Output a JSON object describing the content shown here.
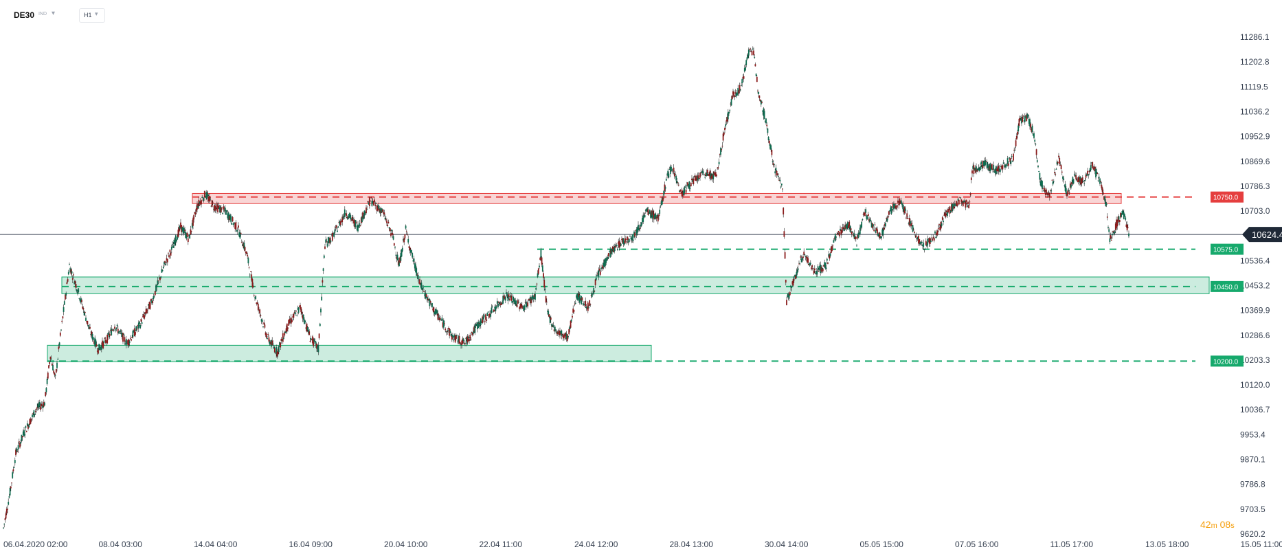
{
  "header": {
    "symbol": "DE30",
    "symbol_type": "IND",
    "timeframe": "H1"
  },
  "timer": {
    "minutes": "42",
    "m": "m",
    "seconds": "08",
    "s": "s"
  },
  "colors": {
    "bull": "#0f6b4f",
    "bear": "#8b1c1c",
    "resistance": "#e53e3e",
    "support": "#16a96c",
    "price_line": "#374151",
    "axis_text": "#374151"
  },
  "chart_data": {
    "type": "candlestick",
    "symbol": "DE30",
    "timeframe": "H1",
    "ylim": [
      9620.2,
      11340
    ],
    "y_ticks": [
      "11286.1",
      "11202.8",
      "11119.5",
      "11036.2",
      "10952.9",
      "10869.6",
      "10786.3",
      "10703.0",
      "10536.4",
      "10453.2",
      "10369.9",
      "10286.6",
      "10203.3",
      "10120.0",
      "10036.7",
      "9953.4",
      "9870.1",
      "9786.8",
      "9703.5",
      "9620.2"
    ],
    "x_ticks": [
      "06.04.2020  02:00",
      "08.04  03:00",
      "14.04  04:00",
      "16.04  09:00",
      "20.04  10:00",
      "22.04  11:00",
      "24.04  12:00",
      "28.04  13:00",
      "30.04  14:00",
      "05.05  15:00",
      "07.05  16:00",
      "11.05  17:00",
      "13.05  18:00",
      "15.05  11:00"
    ],
    "current_price": {
      "value": 10624.4,
      "label": "10624.4"
    },
    "levels": [
      {
        "value": 10750.0,
        "label": "10750.0",
        "kind": "resistance"
      },
      {
        "value": 10575.0,
        "label": "10575.0",
        "kind": "support"
      },
      {
        "value": 10450.0,
        "label": "10450.0",
        "kind": "support"
      },
      {
        "value": 10200.0,
        "label": "10200.0",
        "kind": "support"
      }
    ],
    "zones": [
      {
        "kind": "resistance",
        "from": "14.04",
        "to": "12.05",
        "low": 10728,
        "high": 10762
      },
      {
        "kind": "support",
        "from": "08.04",
        "to": "13.05",
        "low": 10426,
        "high": 10482
      },
      {
        "kind": "support",
        "from": "07.04",
        "to": "27.04",
        "low": 10198,
        "high": 10253
      }
    ],
    "path": [
      [
        0,
        9640
      ],
      [
        8,
        9760
      ],
      [
        15,
        9890
      ],
      [
        25,
        9960
      ],
      [
        40,
        10040
      ],
      [
        50,
        10060
      ],
      [
        57,
        10220
      ],
      [
        63,
        10140
      ],
      [
        68,
        10260
      ],
      [
        80,
        10520
      ],
      [
        90,
        10440
      ],
      [
        105,
        10300
      ],
      [
        115,
        10240
      ],
      [
        125,
        10270
      ],
      [
        135,
        10320
      ],
      [
        150,
        10260
      ],
      [
        165,
        10320
      ],
      [
        180,
        10400
      ],
      [
        195,
        10520
      ],
      [
        205,
        10580
      ],
      [
        215,
        10650
      ],
      [
        225,
        10610
      ],
      [
        235,
        10720
      ],
      [
        245,
        10760
      ],
      [
        255,
        10720
      ],
      [
        270,
        10700
      ],
      [
        285,
        10640
      ],
      [
        295,
        10560
      ],
      [
        305,
        10420
      ],
      [
        320,
        10280
      ],
      [
        332,
        10230
      ],
      [
        345,
        10320
      ],
      [
        360,
        10380
      ],
      [
        372,
        10280
      ],
      [
        382,
        10240
      ],
      [
        390,
        10590
      ],
      [
        400,
        10620
      ],
      [
        415,
        10700
      ],
      [
        430,
        10650
      ],
      [
        445,
        10740
      ],
      [
        460,
        10700
      ],
      [
        472,
        10620
      ],
      [
        480,
        10520
      ],
      [
        488,
        10640
      ],
      [
        495,
        10560
      ],
      [
        505,
        10460
      ],
      [
        520,
        10380
      ],
      [
        535,
        10320
      ],
      [
        545,
        10280
      ],
      [
        560,
        10260
      ],
      [
        575,
        10320
      ],
      [
        590,
        10360
      ],
      [
        610,
        10420
      ],
      [
        630,
        10380
      ],
      [
        645,
        10420
      ],
      [
        652,
        10560
      ],
      [
        660,
        10360
      ],
      [
        670,
        10300
      ],
      [
        685,
        10280
      ],
      [
        695,
        10420
      ],
      [
        710,
        10380
      ],
      [
        720,
        10480
      ],
      [
        735,
        10560
      ],
      [
        750,
        10600
      ],
      [
        765,
        10620
      ],
      [
        780,
        10700
      ],
      [
        795,
        10680
      ],
      [
        805,
        10820
      ],
      [
        812,
        10850
      ],
      [
        822,
        10760
      ],
      [
        835,
        10800
      ],
      [
        850,
        10830
      ],
      [
        865,
        10820
      ],
      [
        875,
        10980
      ],
      [
        885,
        11090
      ],
      [
        895,
        11120
      ],
      [
        905,
        11250
      ],
      [
        910,
        11230
      ],
      [
        915,
        11120
      ],
      [
        925,
        11000
      ],
      [
        935,
        10850
      ],
      [
        945,
        10780
      ],
      [
        950,
        10400
      ],
      [
        960,
        10480
      ],
      [
        970,
        10560
      ],
      [
        985,
        10500
      ],
      [
        998,
        10520
      ],
      [
        1010,
        10620
      ],
      [
        1025,
        10660
      ],
      [
        1035,
        10600
      ],
      [
        1045,
        10700
      ],
      [
        1055,
        10650
      ],
      [
        1065,
        10620
      ],
      [
        1075,
        10700
      ],
      [
        1088,
        10740
      ],
      [
        1100,
        10660
      ],
      [
        1115,
        10580
      ],
      [
        1130,
        10620
      ],
      [
        1145,
        10700
      ],
      [
        1160,
        10740
      ],
      [
        1172,
        10720
      ],
      [
        1175,
        10840
      ],
      [
        1190,
        10860
      ],
      [
        1205,
        10840
      ],
      [
        1225,
        10880
      ],
      [
        1232,
        11000
      ],
      [
        1242,
        11020
      ],
      [
        1250,
        10960
      ],
      [
        1258,
        10800
      ],
      [
        1268,
        10750
      ],
      [
        1280,
        10880
      ],
      [
        1290,
        10760
      ],
      [
        1300,
        10820
      ],
      [
        1310,
        10800
      ],
      [
        1320,
        10860
      ],
      [
        1330,
        10800
      ],
      [
        1338,
        10720
      ],
      [
        1342,
        10600
      ],
      [
        1350,
        10660
      ],
      [
        1358,
        10700
      ],
      [
        1366,
        10620
      ]
    ]
  }
}
